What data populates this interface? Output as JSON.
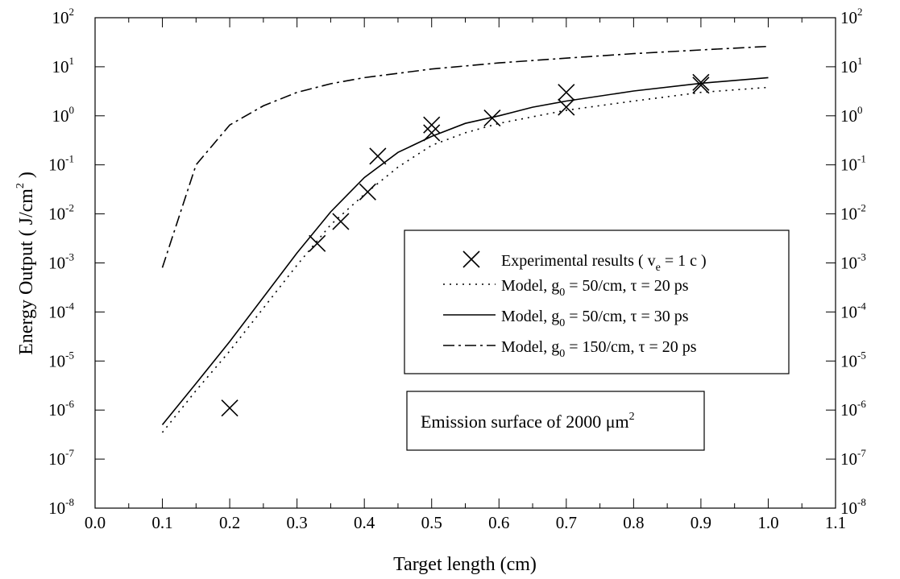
{
  "chart_data": {
    "type": "line",
    "xlabel": "Target length (cm)",
    "ylabel_main": "Energy Output ( J/cm",
    "ylabel_sup": "2",
    "ylabel_end": " )",
    "xlim": [
      0.0,
      1.1
    ],
    "ylim_log10": [
      -8,
      2
    ],
    "y_scale": "log",
    "x_ticks": [
      "0.0",
      "0.1",
      "0.2",
      "0.3",
      "0.4",
      "0.5",
      "0.6",
      "0.7",
      "0.8",
      "0.9",
      "1.0",
      "1.1"
    ],
    "y_tick_exponents": [
      "2",
      "1",
      "0",
      "-1",
      "-2",
      "-3",
      "-4",
      "-5",
      "-6",
      "-7",
      "-8"
    ],
    "y_tick_base": "10",
    "grid": false,
    "series": [
      {
        "name": "Experimental results",
        "style": "x-marker",
        "points": [
          {
            "x": 0.2,
            "y": 1.1e-06
          },
          {
            "x": 0.33,
            "y": 0.0025
          },
          {
            "x": 0.365,
            "y": 0.007
          },
          {
            "x": 0.405,
            "y": 0.028
          },
          {
            "x": 0.42,
            "y": 0.15
          },
          {
            "x": 0.5,
            "y": 0.45
          },
          {
            "x": 0.5,
            "y": 0.65
          },
          {
            "x": 0.59,
            "y": 0.9
          },
          {
            "x": 0.7,
            "y": 1.5
          },
          {
            "x": 0.7,
            "y": 3.0
          },
          {
            "x": 0.9,
            "y": 4.2
          },
          {
            "x": 0.9,
            "y": 4.8
          }
        ]
      },
      {
        "name": "g0 = 50/cm, tau = 20 ps",
        "style": "dotted",
        "points": [
          {
            "x": 0.1,
            "y": 3.5e-07
          },
          {
            "x": 0.15,
            "y": 2.5e-06
          },
          {
            "x": 0.2,
            "y": 1.6e-05
          },
          {
            "x": 0.25,
            "y": 0.00012
          },
          {
            "x": 0.3,
            "y": 0.0009
          },
          {
            "x": 0.35,
            "y": 0.006
          },
          {
            "x": 0.4,
            "y": 0.025
          },
          {
            "x": 0.45,
            "y": 0.09
          },
          {
            "x": 0.5,
            "y": 0.25
          },
          {
            "x": 0.55,
            "y": 0.45
          },
          {
            "x": 0.6,
            "y": 0.7
          },
          {
            "x": 0.7,
            "y": 1.3
          },
          {
            "x": 0.8,
            "y": 2.0
          },
          {
            "x": 0.9,
            "y": 3.0
          },
          {
            "x": 1.0,
            "y": 3.8
          }
        ]
      },
      {
        "name": "g0 = 50/cm, tau = 30 ps",
        "style": "solid",
        "points": [
          {
            "x": 0.1,
            "y": 5e-07
          },
          {
            "x": 0.15,
            "y": 3.5e-06
          },
          {
            "x": 0.2,
            "y": 2.5e-05
          },
          {
            "x": 0.25,
            "y": 0.0002
          },
          {
            "x": 0.3,
            "y": 0.0016
          },
          {
            "x": 0.35,
            "y": 0.011
          },
          {
            "x": 0.4,
            "y": 0.055
          },
          {
            "x": 0.45,
            "y": 0.18
          },
          {
            "x": 0.5,
            "y": 0.38
          },
          {
            "x": 0.55,
            "y": 0.7
          },
          {
            "x": 0.6,
            "y": 1.0
          },
          {
            "x": 0.65,
            "y": 1.5
          },
          {
            "x": 0.7,
            "y": 2.0
          },
          {
            "x": 0.8,
            "y": 3.2
          },
          {
            "x": 0.9,
            "y": 4.6
          },
          {
            "x": 1.0,
            "y": 6.0
          }
        ]
      },
      {
        "name": "g0 = 150/cm, tau = 20 ps",
        "style": "dash-dot",
        "points": [
          {
            "x": 0.1,
            "y": 0.0008
          },
          {
            "x": 0.15,
            "y": 0.1
          },
          {
            "x": 0.2,
            "y": 0.65
          },
          {
            "x": 0.25,
            "y": 1.6
          },
          {
            "x": 0.3,
            "y": 3.0
          },
          {
            "x": 0.35,
            "y": 4.5
          },
          {
            "x": 0.4,
            "y": 6.0
          },
          {
            "x": 0.5,
            "y": 9.0
          },
          {
            "x": 0.6,
            "y": 12
          },
          {
            "x": 0.7,
            "y": 15
          },
          {
            "x": 0.8,
            "y": 18.5
          },
          {
            "x": 0.9,
            "y": 22
          },
          {
            "x": 1.0,
            "y": 26
          }
        ]
      }
    ],
    "legend": {
      "entries": [
        {
          "style": "x-marker",
          "text": "Experimental results ( v",
          "sub": "e",
          "text_end": " = 1 c )"
        },
        {
          "style": "dotted",
          "text": "Model, g",
          "sub": "0",
          "text_end": " =  50/cm, τ = 20 ps"
        },
        {
          "style": "solid",
          "text": "Model, g",
          "sub": "0",
          "text_end": " =  50/cm, τ = 30 ps"
        },
        {
          "style": "dash-dot",
          "text": "Model, g",
          "sub": "0",
          "text_end": " = 150/cm, τ = 20 ps"
        }
      ]
    },
    "annotation": {
      "text": "Emission surface of 2000 μm",
      "sup": "2"
    }
  }
}
